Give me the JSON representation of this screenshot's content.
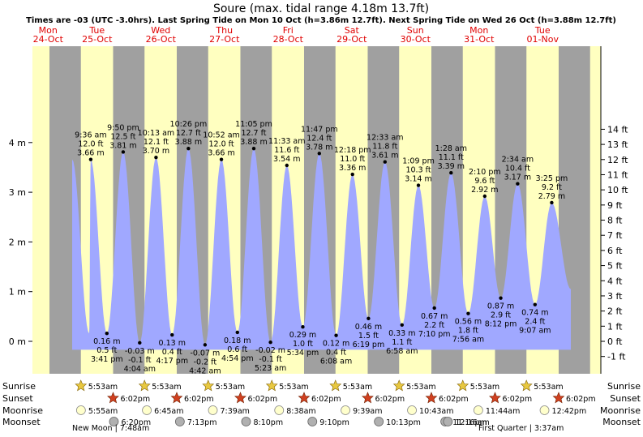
{
  "title": "Soure (max. tidal range 4.18m 13.7ft)",
  "subtitle": "Times are -03 (UTC -3.0hrs). Last Spring Tide on Mon 10 Oct (h=3.86m 12.7ft). Next Spring Tide on Wed 26 Oct (h=3.88m 12.7ft)",
  "colors": {
    "night": "#a0a0a0",
    "day": "#ffffc0",
    "water": "#a0a8ff",
    "header_date": "#e00000",
    "star_sunrise": "#e8c840",
    "star_sunset": "#d04020",
    "moonrise": "#ffffcc",
    "moonset": "#b0b0b0"
  },
  "days": [
    {
      "day": "Mon",
      "date": "24-Oct"
    },
    {
      "day": "Tue",
      "date": "25-Oct"
    },
    {
      "day": "Wed",
      "date": "26-Oct"
    },
    {
      "day": "Thu",
      "date": "27-Oct"
    },
    {
      "day": "Fri",
      "date": "28-Oct"
    },
    {
      "day": "Sat",
      "date": "29-Oct"
    },
    {
      "day": "Sun",
      "date": "30-Oct"
    },
    {
      "day": "Mon",
      "date": "31-Oct"
    },
    {
      "day": "Tue",
      "date": "01-Nov"
    }
  ],
  "row_labels": {
    "sunrise": "Sunrise",
    "sunset": "Sunset",
    "moonrise": "Moonrise",
    "moonset": "Moonset"
  },
  "chart_data": {
    "type": "area",
    "y_left_ticks": [
      {
        "v": 0,
        "label": "0 m"
      },
      {
        "v": 1,
        "label": "1 m"
      },
      {
        "v": 2,
        "label": "2 m"
      },
      {
        "v": 3,
        "label": "3 m"
      },
      {
        "v": 4,
        "label": "4 m"
      }
    ],
    "y_right_ticks": [
      {
        "ft": -1,
        "label": "-1 ft"
      },
      {
        "ft": 0,
        "label": "0 ft"
      },
      {
        "ft": 1,
        "label": "1 ft"
      },
      {
        "ft": 2,
        "label": "2 ft"
      },
      {
        "ft": 3,
        "label": "3 ft"
      },
      {
        "ft": 4,
        "label": "4 ft"
      },
      {
        "ft": 5,
        "label": "5 ft"
      },
      {
        "ft": 6,
        "label": "6 ft"
      },
      {
        "ft": 7,
        "label": "7 ft"
      },
      {
        "ft": 8,
        "label": "8 ft"
      },
      {
        "ft": 9,
        "label": "9 ft"
      },
      {
        "ft": 10,
        "label": "10 ft"
      },
      {
        "ft": 11,
        "label": "11 ft"
      },
      {
        "ft": 12,
        "label": "12 ft"
      },
      {
        "ft": 13,
        "label": "13 ft"
      },
      {
        "ft": 14,
        "label": "14 ft"
      }
    ],
    "ylim_m": [
      -0.55,
      4.55
    ],
    "sunrise_time": "5:53am",
    "sunset_time": "6:02pm",
    "extremes": [
      {
        "type": "high",
        "day": 0,
        "h": 3.66,
        "time_label": "",
        "m_label": "",
        "ft_label": ""
      },
      {
        "type": "low",
        "day": 0,
        "h": 0.16,
        "time_label": "",
        "m_label": "",
        "ft_label": ""
      },
      {
        "type": "high",
        "day": 1,
        "h": 3.66,
        "time_label": "9:36 am",
        "m_label": "3.66 m",
        "ft_label": "12.0 ft"
      },
      {
        "type": "low",
        "day": 1,
        "h": 0.16,
        "time_label": "3:41 pm",
        "m_label": "0.16 m",
        "ft_label": "0.5 ft"
      },
      {
        "type": "high",
        "day": 1,
        "h": 3.81,
        "time_label": "9:50 pm",
        "m_label": "3.81 m",
        "ft_label": "12.5 ft"
      },
      {
        "type": "low",
        "day": 2,
        "h": -0.03,
        "time_label": "4:04 am",
        "m_label": "-0.03 m",
        "ft_label": "-0.1 ft"
      },
      {
        "type": "high",
        "day": 2,
        "h": 3.7,
        "time_label": "10:13 am",
        "m_label": "3.70 m",
        "ft_label": "12.1 ft"
      },
      {
        "type": "low",
        "day": 2,
        "h": 0.13,
        "time_label": "4:17 pm",
        "m_label": "0.13 m",
        "ft_label": "0.4 ft"
      },
      {
        "type": "high",
        "day": 2,
        "h": 3.88,
        "time_label": "10:26 pm",
        "m_label": "3.88 m",
        "ft_label": "12.7 ft"
      },
      {
        "type": "low",
        "day": 3,
        "h": -0.07,
        "time_label": "4:42 am",
        "m_label": "-0.07 m",
        "ft_label": "-0.2 ft"
      },
      {
        "type": "high",
        "day": 3,
        "h": 3.66,
        "time_label": "10:52 am",
        "m_label": "3.66 m",
        "ft_label": "12.0 ft"
      },
      {
        "type": "low",
        "day": 3,
        "h": 0.18,
        "time_label": "4:54 pm",
        "m_label": "0.18 m",
        "ft_label": "0.6 ft"
      },
      {
        "type": "high",
        "day": 3,
        "h": 3.88,
        "time_label": "11:05 pm",
        "m_label": "3.88 m",
        "ft_label": "12.7 ft"
      },
      {
        "type": "low",
        "day": 4,
        "h": -0.02,
        "time_label": "5:23 am",
        "m_label": "-0.02 m",
        "ft_label": "-0.1 ft"
      },
      {
        "type": "high",
        "day": 4,
        "h": 3.54,
        "time_label": "11:33 am",
        "m_label": "3.54 m",
        "ft_label": "11.6 ft"
      },
      {
        "type": "low",
        "day": 4,
        "h": 0.29,
        "time_label": "5:34 pm",
        "m_label": "0.29 m",
        "ft_label": "1.0 ft"
      },
      {
        "type": "high",
        "day": 4,
        "h": 3.78,
        "time_label": "11:47 pm",
        "m_label": "3.78 m",
        "ft_label": "12.4 ft"
      },
      {
        "type": "low",
        "day": 5,
        "h": 0.12,
        "time_label": "6:08 am",
        "m_label": "0.12 m",
        "ft_label": "0.4 ft"
      },
      {
        "type": "high",
        "day": 5,
        "h": 3.36,
        "time_label": "12:18 pm",
        "m_label": "3.36 m",
        "ft_label": "11.0 ft"
      },
      {
        "type": "low",
        "day": 5,
        "h": 0.46,
        "time_label": "6:19 pm",
        "m_label": "0.46 m",
        "ft_label": "1.5 ft"
      },
      {
        "type": "high",
        "day": 6,
        "h": 3.61,
        "time_label": "12:33 am",
        "m_label": "3.61 m",
        "ft_label": "11.8 ft"
      },
      {
        "type": "low",
        "day": 6,
        "h": 0.33,
        "time_label": "6:58 am",
        "m_label": "0.33 m",
        "ft_label": "1.1 ft"
      },
      {
        "type": "high",
        "day": 6,
        "h": 3.14,
        "time_label": "1:09 pm",
        "m_label": "3.14 m",
        "ft_label": "10.3 ft"
      },
      {
        "type": "low",
        "day": 6,
        "h": 0.67,
        "time_label": "7:10 pm",
        "m_label": "0.67 m",
        "ft_label": "2.2 ft"
      },
      {
        "type": "high",
        "day": 7,
        "h": 3.39,
        "time_label": "1:28 am",
        "m_label": "3.39 m",
        "ft_label": "11.1 ft"
      },
      {
        "type": "low",
        "day": 7,
        "h": 0.56,
        "time_label": "7:56 am",
        "m_label": "0.56 m",
        "ft_label": "1.8 ft"
      },
      {
        "type": "high",
        "day": 7,
        "h": 2.92,
        "time_label": "2:10 pm",
        "m_label": "2.92 m",
        "ft_label": "9.6 ft"
      },
      {
        "type": "low",
        "day": 7,
        "h": 0.87,
        "time_label": "8:12 pm",
        "m_label": "0.87 m",
        "ft_label": "2.9 ft"
      },
      {
        "type": "high",
        "day": 8,
        "h": 3.17,
        "time_label": "2:34 am",
        "m_label": "3.17 m",
        "ft_label": "10.4 ft"
      },
      {
        "type": "low",
        "day": 8,
        "h": 0.74,
        "time_label": "9:07 am",
        "m_label": "0.74 m",
        "ft_label": "2.4 ft"
      },
      {
        "type": "high",
        "day": 8,
        "h": 2.79,
        "time_label": "3:25 pm",
        "m_label": "2.79 m",
        "ft_label": "9.2 ft"
      },
      {
        "type": "low",
        "day": 8,
        "h": 1.05,
        "time_label": "",
        "m_label": "",
        "ft_label": ""
      }
    ],
    "moonrise": [
      {
        "day": 1,
        "time": "5:55am"
      },
      {
        "day": 2,
        "time": "6:45am"
      },
      {
        "day": 3,
        "time": "7:39am"
      },
      {
        "day": 4,
        "time": "8:38am"
      },
      {
        "day": 5,
        "time": "9:39am"
      },
      {
        "day": 6,
        "time": "10:43am"
      },
      {
        "day": 7,
        "time": "11:44am"
      },
      {
        "day": 8,
        "time": "12:42pm"
      }
    ],
    "moonset": [
      {
        "day": 1,
        "time": "6:20pm"
      },
      {
        "day": 2,
        "time": "7:13pm"
      },
      {
        "day": 3,
        "time": "8:10pm"
      },
      {
        "day": 4,
        "time": "9:10pm"
      },
      {
        "day": 5,
        "time": "10:13pm"
      },
      {
        "day": 6,
        "time": "11:16pm"
      },
      {
        "day": 7,
        "time": "12:16am"
      }
    ]
  },
  "footer": {
    "new_moon": "New Moon | 7:48am",
    "first_quarter": "First Quarter | 3:37am"
  }
}
